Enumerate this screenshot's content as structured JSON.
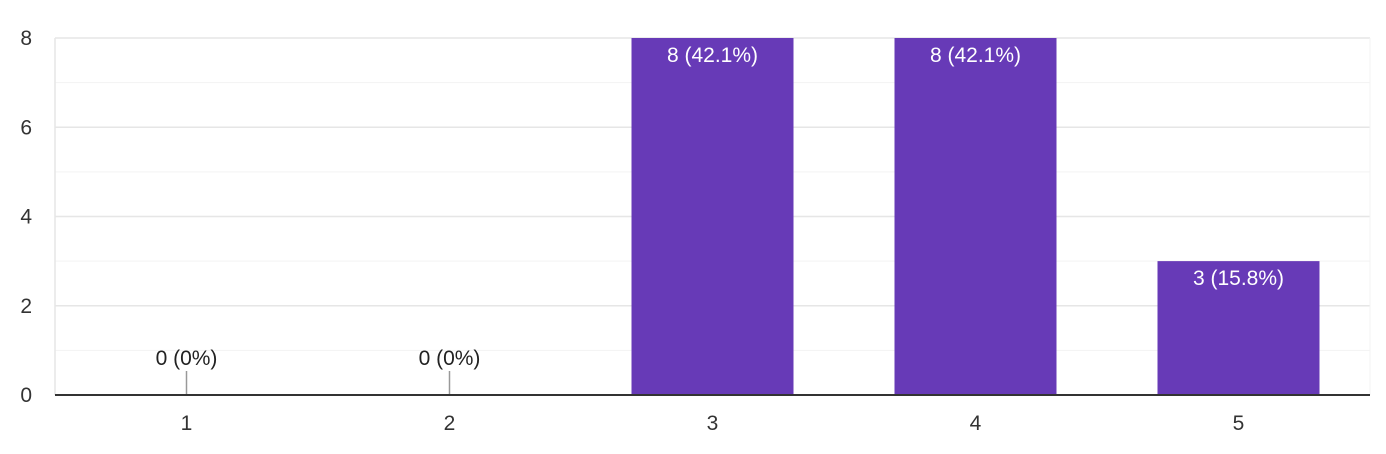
{
  "chart_data": {
    "type": "bar",
    "categories": [
      "1",
      "2",
      "3",
      "4",
      "5"
    ],
    "values": [
      0,
      0,
      8,
      8,
      3
    ],
    "data_labels": [
      "0 (0%)",
      "0 (0%)",
      "8 (42.1%)",
      "8 (42.1%)",
      "3 (15.8%)"
    ],
    "ylim": [
      0,
      8
    ],
    "y_ticks": [
      "0",
      "2",
      "4",
      "6",
      "8"
    ],
    "y_tick_values": [
      0,
      2,
      4,
      6,
      8
    ],
    "grid": true,
    "legend": "none",
    "colors": {
      "bar": "#673ab7",
      "grid_major": "#e6e6e6",
      "grid_minor": "#f3f3f3",
      "axis": "#333333",
      "label_inside": "#ffffff",
      "label_outside": "#222222"
    }
  }
}
